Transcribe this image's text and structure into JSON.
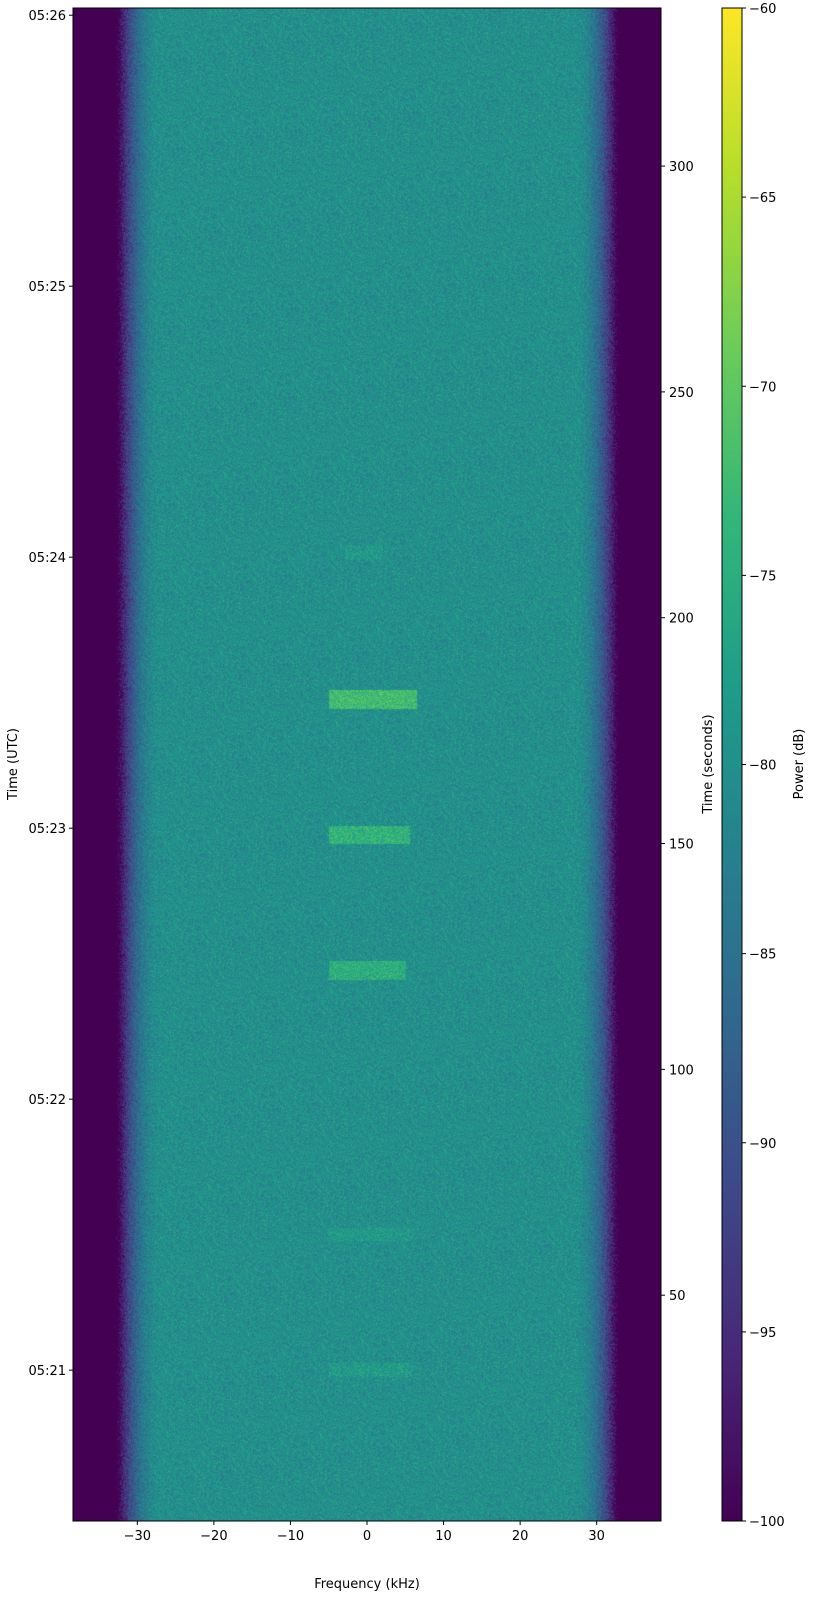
{
  "chart_data": {
    "type": "heatmap",
    "title": "",
    "xlabel": "Frequency (kHz)",
    "ylabel_left": "Time (UTC)",
    "ylabel_right": "Time (seconds)",
    "colorbar_label": "Power (dB)",
    "colormap": "viridis",
    "xlim": [
      -38.4,
      38.4
    ],
    "ylim_seconds": [
      0,
      335
    ],
    "clim": [
      -100,
      -60
    ],
    "x_ticks": [
      -30,
      -20,
      -10,
      0,
      10,
      20,
      30
    ],
    "x_tick_labels": [
      "−30",
      "−20",
      "−10",
      "0",
      "10",
      "20",
      "30"
    ],
    "right_ticks": [
      50,
      100,
      150,
      200,
      250,
      300
    ],
    "right_tick_labels": [
      "50",
      "100",
      "150",
      "200",
      "250",
      "300"
    ],
    "left_ticks_seconds": [
      33.4,
      93.4,
      153.4,
      213.4,
      273.4,
      333.4
    ],
    "left_tick_labels": [
      "05:21",
      "05:22",
      "05:23",
      "05:24",
      "05:25",
      "05:26"
    ],
    "colorbar_ticks": [
      -100,
      -95,
      -90,
      -85,
      -80,
      -75,
      -70,
      -65,
      -60
    ],
    "colorbar_tick_labels": [
      "−100",
      "−95",
      "−90",
      "−85",
      "−80",
      "−75",
      "−70",
      "−65",
      "−60"
    ],
    "noise_floor_db": -80,
    "passband_khz": [
      -33,
      33
    ],
    "bursts": [
      {
        "t_start": 32,
        "t_end": 35,
        "f_start": -5,
        "f_end": 6,
        "power_db": -78
      },
      {
        "t_start": 62,
        "t_end": 65,
        "f_start": -5,
        "f_end": 6,
        "power_db": -78.5
      },
      {
        "t_start": 120,
        "t_end": 124,
        "f_start": -5,
        "f_end": 5,
        "power_db": -75
      },
      {
        "t_start": 150,
        "t_end": 154,
        "f_start": -5,
        "f_end": 5.5,
        "power_db": -74
      },
      {
        "t_start": 180,
        "t_end": 184,
        "f_start": -5,
        "f_end": 6.5,
        "power_db": -72.5
      },
      {
        "t_start": 213,
        "t_end": 216,
        "f_start": -3,
        "f_end": 2,
        "power_db": -78.5
      }
    ]
  }
}
